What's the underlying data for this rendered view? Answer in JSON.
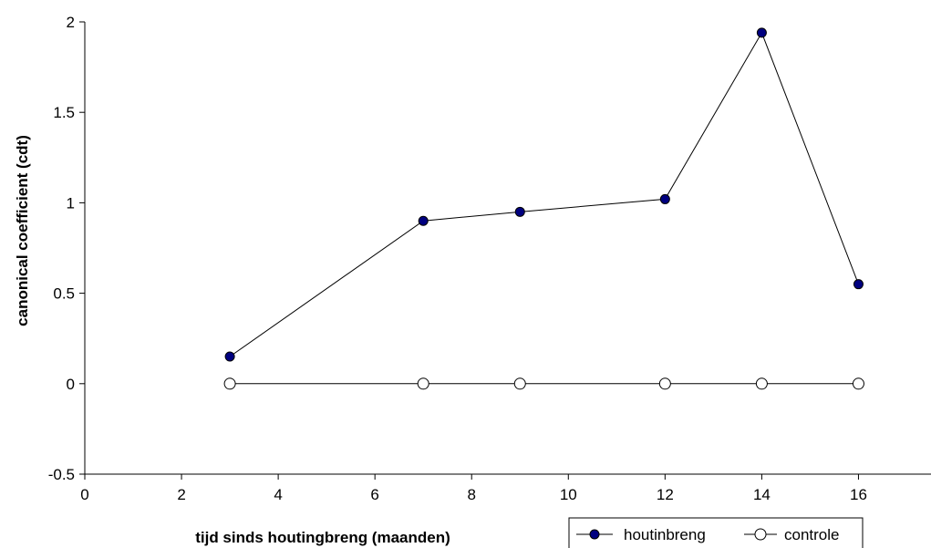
{
  "chart_data": {
    "type": "line",
    "title": "",
    "xlabel": "tijd sinds houtingbreng (maanden)",
    "ylabel": "canonical coefficient (cdt)",
    "xlim": [
      0,
      17.5
    ],
    "ylim": [
      -0.5,
      2
    ],
    "x_ticks": [
      0,
      2,
      4,
      6,
      8,
      10,
      12,
      14,
      16
    ],
    "y_ticks": [
      -0.5,
      0,
      0.5,
      1,
      1.5,
      2
    ],
    "x_tick_labels": [
      "0",
      "2",
      "4",
      "6",
      "8",
      "10",
      "12",
      "14",
      "16"
    ],
    "y_tick_labels": [
      "-0.5",
      "0",
      "0.5",
      "1",
      "1.5",
      "2"
    ],
    "grid": false,
    "legend_position": "bottom-right",
    "series": [
      {
        "name": "houtinbreng",
        "marker": "filled-circle",
        "color": "#000080",
        "line_color": "#000000",
        "x": [
          3,
          7,
          9,
          12,
          14,
          16
        ],
        "y": [
          0.15,
          0.9,
          0.95,
          1.02,
          1.94,
          0.55
        ]
      },
      {
        "name": "controle",
        "marker": "open-circle",
        "color": "#ffffff",
        "line_color": "#000000",
        "x": [
          3,
          7,
          9,
          12,
          14,
          16
        ],
        "y": [
          0,
          0,
          0,
          0,
          0,
          0
        ]
      }
    ]
  }
}
